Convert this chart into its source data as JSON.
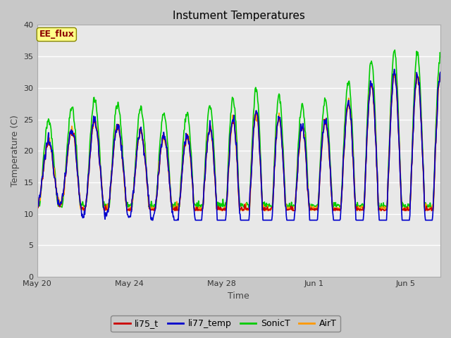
{
  "title": "Instument Temperatures",
  "xlabel": "Time",
  "ylabel": "Temperature (C)",
  "ylim": [
    0,
    40
  ],
  "yticks": [
    0,
    5,
    10,
    15,
    20,
    25,
    30,
    35,
    40
  ],
  "fig_bg_color": "#c8c8c8",
  "plot_bg_color": "#e8e8e8",
  "annotation_text": "EE_flux",
  "annotation_color": "#8b0000",
  "annotation_bg": "#ffff88",
  "legend_entries": [
    "li75_t",
    "li77_temp",
    "SonicT",
    "AirT"
  ],
  "line_colors": [
    "#cc0000",
    "#0000cc",
    "#00cc00",
    "#ff9900"
  ],
  "x_tick_labels": [
    "May 20",
    "May 24",
    "May 28",
    "Jun 1",
    "Jun 5"
  ],
  "x_tick_positions": [
    0,
    4,
    8,
    12,
    16
  ],
  "xlim": [
    0,
    17.5
  ]
}
